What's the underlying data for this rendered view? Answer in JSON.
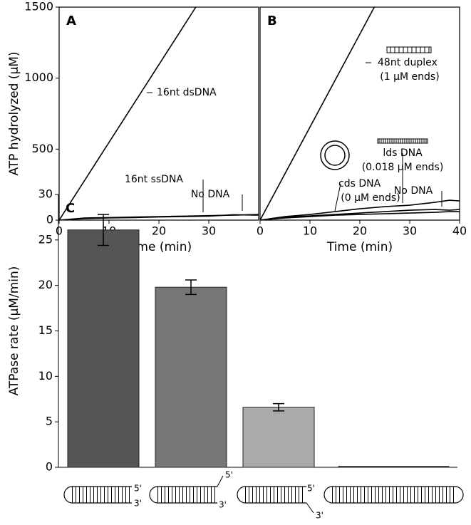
{
  "chart_data": [
    {
      "type": "line",
      "panel_label": "A",
      "xlabel": "Time (min)",
      "ylabel": "ATP hydrolyzed (µM)",
      "xlim": [
        0,
        40
      ],
      "ylim": [
        0,
        1500
      ],
      "xticks": [
        0,
        10,
        20,
        30
      ],
      "yticks": [
        0,
        500,
        1000,
        1500
      ],
      "series": [
        {
          "name": "16nt dsDNA",
          "color": "#000000",
          "x": [
            0,
            27.4
          ],
          "values": [
            0,
            1500
          ]
        },
        {
          "name": "16nt ssDNA",
          "color": "#000000",
          "x": [
            0,
            5,
            10,
            15,
            20,
            25,
            30,
            35,
            40
          ],
          "values": [
            0,
            15,
            18,
            22,
            25,
            28,
            32,
            35,
            40
          ]
        },
        {
          "name": "No DNA",
          "color": "#000000",
          "x": [
            0,
            5,
            10,
            15,
            20,
            25,
            30,
            35,
            40
          ],
          "values": [
            0,
            10,
            15,
            18,
            22,
            25,
            28,
            38,
            35
          ]
        }
      ]
    },
    {
      "type": "line",
      "panel_label": "B",
      "xlabel": "Time (min)",
      "xlim": [
        0,
        40
      ],
      "ylim": [
        0,
        1500
      ],
      "xticks": [
        0,
        10,
        20,
        30,
        40
      ],
      "series": [
        {
          "name": "48nt duplex",
          "note": "(1 µM ends)",
          "color": "#000000",
          "x": [
            0,
            22.9
          ],
          "values": [
            0,
            1500
          ]
        },
        {
          "name": "lds DNA",
          "note": "(0.018 µM ends)",
          "color": "#000000",
          "x": [
            0,
            5,
            10,
            15,
            20,
            25,
            30,
            35,
            38,
            40
          ],
          "values": [
            0,
            25,
            40,
            60,
            80,
            95,
            105,
            125,
            140,
            135
          ]
        },
        {
          "name": "cds DNA",
          "note": "(0 µM ends)",
          "color": "#000000",
          "x": [
            0,
            5,
            10,
            15,
            20,
            25,
            30,
            35,
            38,
            40
          ],
          "values": [
            0,
            15,
            25,
            35,
            40,
            45,
            50,
            55,
            60,
            60
          ]
        },
        {
          "name": "No DNA",
          "color": "#000000",
          "x": [
            0,
            5,
            10,
            15,
            20,
            25,
            30,
            35,
            38,
            40
          ],
          "values": [
            0,
            20,
            30,
            40,
            50,
            60,
            70,
            75,
            70,
            75
          ]
        }
      ]
    },
    {
      "type": "bar",
      "panel_label": "C",
      "ylabel": "ATPase rate (µM/min)",
      "categories": [
        null,
        null,
        null,
        null
      ],
      "values": [
        26.1,
        19.8,
        6.6,
        0.1
      ],
      "errors": [
        1.7,
        0.8,
        0.4,
        0
      ],
      "colors": [
        "#555555",
        "#777777",
        "#aaaaaa",
        "#333333"
      ],
      "ylim": [
        0,
        30
      ],
      "yticks": [
        0,
        5,
        10,
        15,
        20,
        25,
        30
      ],
      "annotations": [
        "5'",
        "3'",
        "5'",
        "3'",
        "5'",
        "3'"
      ]
    }
  ]
}
